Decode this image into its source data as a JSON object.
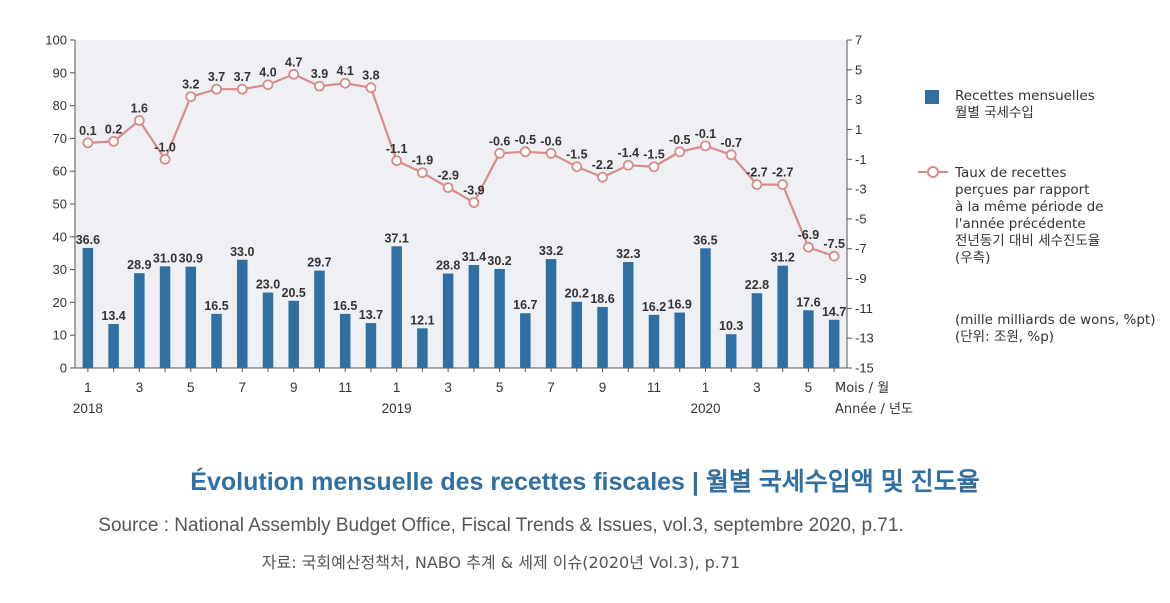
{
  "chart_data": {
    "type": "bar",
    "categories": [
      "1",
      "2",
      "3",
      "4",
      "5",
      "6",
      "7",
      "8",
      "9",
      "10",
      "11",
      "12",
      "1",
      "2",
      "3",
      "4",
      "5",
      "6",
      "7",
      "8",
      "9",
      "10",
      "11",
      "12",
      "1",
      "2",
      "3",
      "4",
      "5",
      "6"
    ],
    "x_tick_labels": [
      "1",
      "3",
      "5",
      "7",
      "9",
      "11",
      "1",
      "3",
      "5",
      "7",
      "9",
      "11",
      "1",
      "3",
      "5"
    ],
    "x_year_labels": [
      "2018",
      "2019",
      "2020"
    ],
    "x_axis_unit_label": "Mois / 월",
    "x_axis_year_unit_label": "Année / 년도",
    "y_left_ticks": [
      "0",
      "10",
      "20",
      "30",
      "40",
      "50",
      "60",
      "70",
      "80",
      "90",
      "100"
    ],
    "y_right_ticks": [
      "-15",
      "-13",
      "-11",
      "-9",
      "-7",
      "-5",
      "-3",
      "-1",
      "1",
      "3",
      "5",
      "7"
    ],
    "ylim_left": [
      0,
      100
    ],
    "ylim_right": [
      -15,
      7
    ],
    "series": [
      {
        "name": "Recettes mensuelles\n월별 국세수입",
        "type": "bar",
        "axis": "left",
        "color": "#2f6fa1",
        "values": [
          36.6,
          13.4,
          28.9,
          31.0,
          30.9,
          16.5,
          33.0,
          23.0,
          20.5,
          29.7,
          16.5,
          13.7,
          37.1,
          12.1,
          28.8,
          31.4,
          30.2,
          16.7,
          33.2,
          20.2,
          18.6,
          32.3,
          16.2,
          16.9,
          36.5,
          10.3,
          22.8,
          31.2,
          17.6,
          14.7
        ],
        "labels": [
          "36.6",
          "13.4",
          "28.9",
          "31.0",
          "30.9",
          "16.5",
          "33.0",
          "23.0",
          "20.5",
          "29.7",
          "16.5",
          "13.7",
          "37.1",
          "12.1",
          "28.8",
          "31.4",
          "30.2",
          "16.7",
          "33.2",
          "20.2",
          "18.6",
          "32.3",
          "16.2",
          "16.9",
          "36.5",
          "10.3",
          "22.8",
          "31.2",
          "17.6",
          "14.7"
        ]
      },
      {
        "name": "Taux de recettes\nperçues par rapport\nà la même période de\nl'année précédente\n전년동기 대비 세수진도율\n(우측)",
        "type": "line",
        "axis": "right",
        "color": "#d98b8b",
        "values": [
          0.1,
          0.2,
          1.6,
          -1.0,
          3.2,
          3.7,
          3.7,
          4.0,
          4.7,
          3.9,
          4.1,
          3.8,
          -1.1,
          -1.9,
          -2.9,
          -3.9,
          -0.6,
          -0.5,
          -0.6,
          -1.5,
          -2.2,
          -1.4,
          -1.5,
          -0.5,
          -0.1,
          -0.7,
          -2.7,
          -2.7,
          -6.9,
          -7.5
        ],
        "labels": [
          "0.1",
          "0.2",
          "1.6",
          "-1.0",
          "3.2",
          "3.7",
          "3.7",
          "4.0",
          "4.7",
          "3.9",
          "4.1",
          "3.8",
          "-1.1",
          "-1.9",
          "-2.9",
          "-3.9",
          "-0.6",
          "-0.5",
          "-0.6",
          "-1.5",
          "-2.2",
          "-1.4",
          "-1.5",
          "-0.5",
          "-0.1",
          "-0.7",
          "-2.7",
          "-2.7",
          "-6.9",
          "-7.5"
        ]
      }
    ],
    "unit_note": "(mille milliards de wons, %pt)\n(단위: 조원, %p)",
    "grid": false,
    "legend_position": "right"
  },
  "legend": {
    "bar_label": "Recettes mensuelles\n월별 국세수입",
    "line_label": "Taux de recettes\nperçues par rapport\nà la même période de\nl'année précédente\n전년동기 대비 세수진도율\n(우측)",
    "unit_note": "(mille milliards de wons, %pt)\n(단위: 조원, %p)"
  },
  "caption": {
    "title": "Évolution mensuelle des recettes fiscales | 월별 국세수입액 및 진도율",
    "source": "Source : National Assembly Budget Office, Fiscal Trends & Issues, vol.3, septembre 2020, p.71.",
    "source_ko": "자료: 국회예산정책처, NABO 추계 & 세제 이슈(2020년 Vol.3), p.71"
  },
  "colors": {
    "bar": "#2f6fa1",
    "line": "#d98b8b",
    "plot_bg": "#eef0f3",
    "title": "#2f6fa1"
  }
}
